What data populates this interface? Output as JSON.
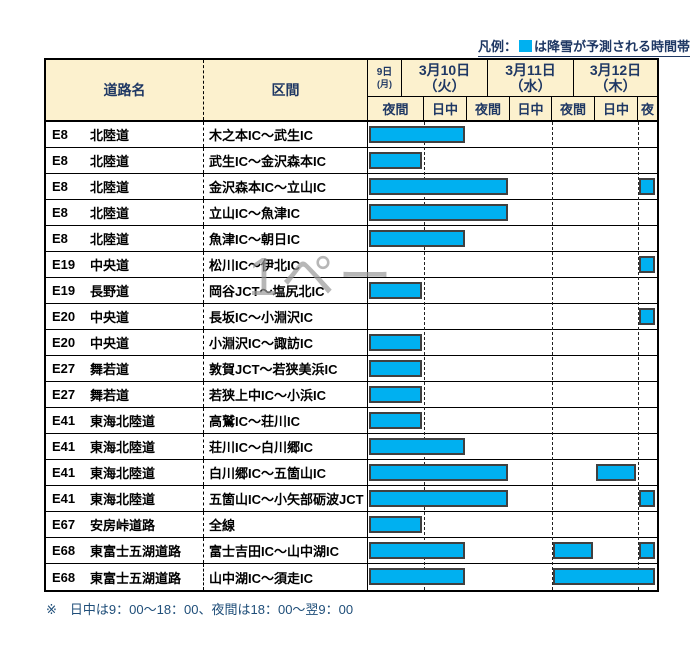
{
  "legend": {
    "prefix": "凡例：",
    "suffix": "は降雪が予測される時間帯",
    "swatch_color": "#00B0F0"
  },
  "header": {
    "road_col": "道路名",
    "section_col": "区間",
    "dates": [
      {
        "line1": "9日",
        "line2": "(月)"
      },
      {
        "line1": "3月10日",
        "line2": "（火）"
      },
      {
        "line1": "3月11日",
        "line2": "（水）"
      },
      {
        "line1": "3月12日",
        "line2": "（木）"
      }
    ],
    "slots": [
      "夜間",
      "日中",
      "夜間",
      "日中",
      "夜間",
      "日中",
      "夜"
    ]
  },
  "chart_data": {
    "type": "gantt",
    "columns": [
      "9日(月)夜間",
      "3月10日(火)日中",
      "3月10日(火)夜間",
      "3月11日(水)日中",
      "3月11日(水)夜間",
      "3月12日(木)日中",
      "3月12日(木)夜"
    ],
    "bar_meaning": "降雪が予測される時間帯",
    "rows": [
      {
        "code": "E8",
        "road": "北陸道",
        "section": "木之本IC～武生IC",
        "bars": [
          [
            1,
            2
          ]
        ]
      },
      {
        "code": "E8",
        "road": "北陸道",
        "section": "武生IC～金沢森本IC",
        "bars": [
          [
            1,
            1
          ]
        ]
      },
      {
        "code": "E8",
        "road": "北陸道",
        "section": "金沢森本IC～立山IC",
        "bars": [
          [
            1,
            3
          ],
          [
            7,
            7
          ]
        ]
      },
      {
        "code": "E8",
        "road": "北陸道",
        "section": "立山IC～魚津IC",
        "bars": [
          [
            1,
            3
          ]
        ]
      },
      {
        "code": "E8",
        "road": "北陸道",
        "section": "魚津IC～朝日IC",
        "bars": [
          [
            1,
            2
          ]
        ]
      },
      {
        "code": "E19",
        "road": "中央道",
        "section": "松川IC～伊北IC",
        "bars": [
          [
            7,
            7
          ]
        ]
      },
      {
        "code": "E19",
        "road": "長野道",
        "section": "岡谷JCT～塩尻北IC",
        "bars": [
          [
            1,
            1
          ]
        ]
      },
      {
        "code": "E20",
        "road": "中央道",
        "section": "長坂IC～小淵沢IC",
        "bars": [
          [
            7,
            7
          ]
        ]
      },
      {
        "code": "E20",
        "road": "中央道",
        "section": "小淵沢IC～諏訪IC",
        "bars": [
          [
            1,
            1
          ]
        ]
      },
      {
        "code": "E27",
        "road": "舞若道",
        "section": "敦賀JCT～若狭美浜IC",
        "bars": [
          [
            1,
            1
          ]
        ]
      },
      {
        "code": "E27",
        "road": "舞若道",
        "section": "若狭上中IC～小浜IC",
        "bars": [
          [
            1,
            1
          ]
        ]
      },
      {
        "code": "E41",
        "road": "東海北陸道",
        "section": "高鷲IC～荘川IC",
        "bars": [
          [
            1,
            1
          ]
        ]
      },
      {
        "code": "E41",
        "road": "東海北陸道",
        "section": "荘川IC～白川郷IC",
        "bars": [
          [
            1,
            2
          ]
        ]
      },
      {
        "code": "E41",
        "road": "東海北陸道",
        "section": "白川郷IC～五箇山IC",
        "bars": [
          [
            1,
            3
          ],
          [
            6,
            6
          ]
        ]
      },
      {
        "code": "E41",
        "road": "東海北陸道",
        "section": "五箇山IC～小矢部砺波JCT",
        "bars": [
          [
            1,
            3
          ],
          [
            7,
            7
          ]
        ]
      },
      {
        "code": "E67",
        "road": "安房峠道路",
        "section": "全線",
        "bars": [
          [
            1,
            1
          ]
        ]
      },
      {
        "code": "E68",
        "road": "東富士五湖道路",
        "section": "富士吉田IC～山中湖IC",
        "bars": [
          [
            1,
            2
          ],
          [
            5,
            5
          ],
          [
            7,
            7
          ]
        ]
      },
      {
        "code": "E68",
        "road": "東富士五湖道路",
        "section": "山中湖IC～須走IC",
        "bars": [
          [
            1,
            2
          ],
          [
            5,
            7
          ]
        ]
      }
    ]
  },
  "watermark": "1ペー",
  "footnote": "※　日中は9：00～18：00、夜間は18：00～翌9：00",
  "colors": {
    "bar": "#00B0F0",
    "bar_border": "#404040",
    "header_bg": "#FCF1CE",
    "header_text": "#1F3864",
    "note_text": "#1F4E79"
  }
}
